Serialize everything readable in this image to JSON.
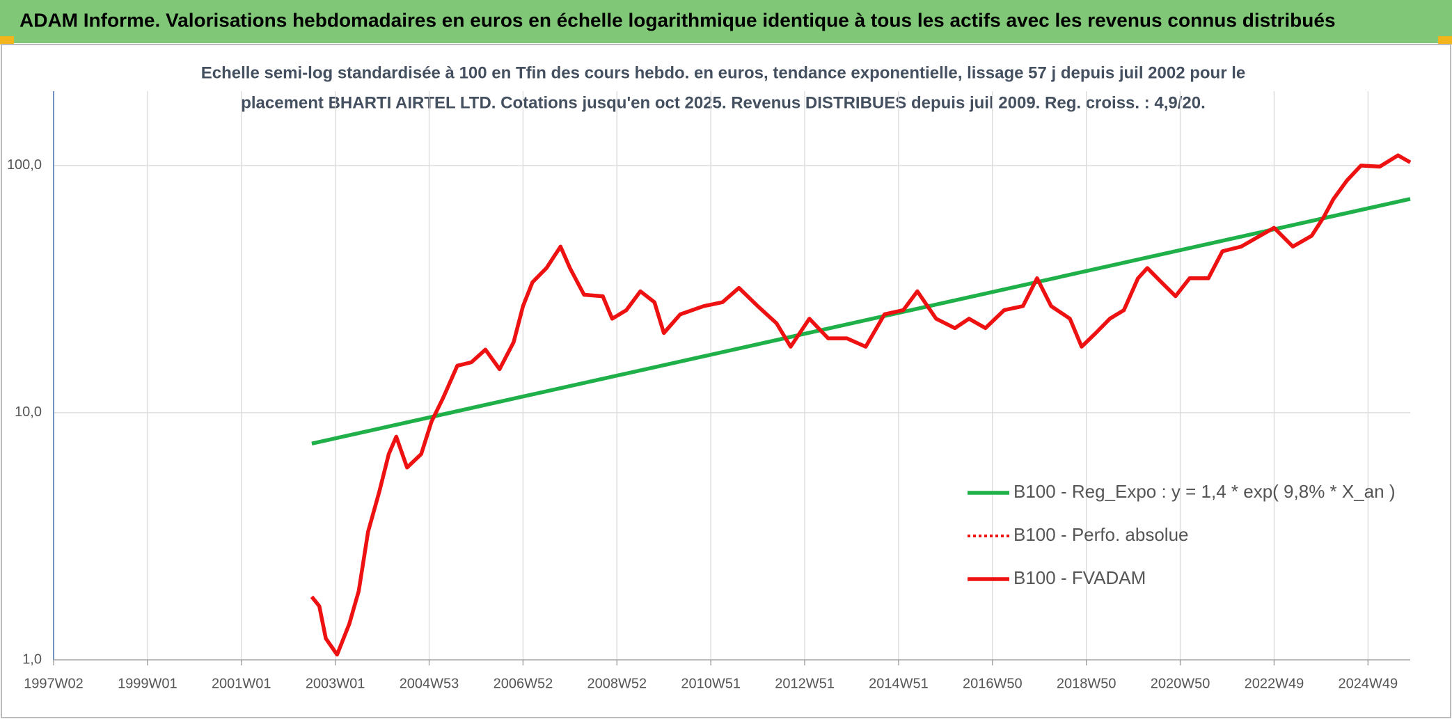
{
  "chart_data": {
    "type": "line",
    "title": "ADAM Informe. Valorisations hebdomadaires en euros en échelle logarithmique identique à tous les actifs avec les revenus connus distribués",
    "subtitle": [
      "Echelle semi-log standardisée à 100 en Tfin des cours hebdo. en euros, tendance exponentielle, lissage 57 j depuis juil 2002 pour le",
      "placement BHARTI AIRTEL LTD. Cotations jusqu'en oct 2025. Revenus DISTRIBUES depuis juil 2009. Reg. croiss. : 4,9/20."
    ],
    "log_scale": true,
    "grid": true,
    "legend": "lower right",
    "xlim": [
      1997.0,
      2025.9
    ],
    "xticks": [
      {
        "value": 1997.0,
        "label": "1997W02"
      },
      {
        "value": 1999.0,
        "label": "1999W01"
      },
      {
        "value": 2001.0,
        "label": "2001W01"
      },
      {
        "value": 2003.0,
        "label": "2003W01"
      },
      {
        "value": 2005.0,
        "label": "2004W53"
      },
      {
        "value": 2007.0,
        "label": "2006W52"
      },
      {
        "value": 2009.0,
        "label": "2008W52"
      },
      {
        "value": 2011.0,
        "label": "2010W51"
      },
      {
        "value": 2013.0,
        "label": "2012W51"
      },
      {
        "value": 2015.0,
        "label": "2014W51"
      },
      {
        "value": 2017.0,
        "label": "2016W50"
      },
      {
        "value": 2019.0,
        "label": "2018W50"
      },
      {
        "value": 2021.0,
        "label": "2020W50"
      },
      {
        "value": 2023.0,
        "label": "2022W49"
      },
      {
        "value": 2025.0,
        "label": "2024W49"
      }
    ],
    "ylim": [
      1,
      200
    ],
    "yticks": [
      {
        "value": 1,
        "label": "1,0"
      },
      {
        "value": 10,
        "label": "10,0"
      },
      {
        "value": 100,
        "label": "100,0"
      }
    ],
    "series": [
      {
        "name": "B100 - Reg_Expo : y = 1,4 * exp( 9,8% *  X_an )",
        "color": "#1fb04a",
        "style": "solid",
        "x": [
          2002.5,
          2025.9
        ],
        "values": [
          7.5,
          73.3
        ]
      },
      {
        "name": "B100 - Perfo. absolue",
        "color": "#ee1111",
        "style": "dotted",
        "x": [],
        "values": []
      },
      {
        "name": "B100 - FVADAM",
        "color": "#ee1111",
        "style": "solid",
        "x": [
          2002.5,
          2002.66,
          2002.8,
          2003.04,
          2003.3,
          2003.5,
          2003.7,
          2003.94,
          2004.14,
          2004.3,
          2004.53,
          2004.83,
          2005.05,
          2005.3,
          2005.6,
          2005.9,
          2006.2,
          2006.5,
          2006.8,
          2007.0,
          2007.2,
          2007.5,
          2007.8,
          2008.0,
          2008.3,
          2008.7,
          2008.9,
          2009.2,
          2009.5,
          2009.8,
          2010.0,
          2010.35,
          2010.85,
          2011.25,
          2011.6,
          2012.0,
          2012.4,
          2012.7,
          2013.1,
          2013.5,
          2013.9,
          2014.3,
          2014.7,
          2015.1,
          2015.4,
          2015.8,
          2016.2,
          2016.5,
          2016.85,
          2017.25,
          2017.65,
          2017.95,
          2018.25,
          2018.65,
          2018.9,
          2019.2,
          2019.5,
          2019.8,
          2020.1,
          2020.3,
          2020.6,
          2020.9,
          2021.2,
          2021.6,
          2021.9,
          2022.3,
          2022.7,
          2023.0,
          2023.4,
          2023.8,
          2024.06,
          2024.26,
          2024.55,
          2024.85,
          2025.25,
          2025.64,
          2025.9
        ],
        "values": [
          1.8,
          1.65,
          1.22,
          1.05,
          1.4,
          1.9,
          3.3,
          4.8,
          6.8,
          8.0,
          6.0,
          6.8,
          9.2,
          11.5,
          15.5,
          16,
          18,
          15,
          19.3,
          27,
          33.7,
          38.5,
          47,
          38.5,
          30,
          29.6,
          24,
          26,
          31,
          28,
          21,
          25,
          27,
          28,
          32,
          27,
          23,
          18.5,
          24,
          20,
          20,
          18.5,
          25,
          26,
          31,
          24,
          22,
          24,
          22,
          26,
          27,
          35,
          27,
          24,
          18.5,
          21,
          24,
          26,
          35,
          38.5,
          33.7,
          29.6,
          35,
          35,
          45,
          47,
          52,
          56,
          47,
          52,
          62,
          73,
          87,
          100,
          99,
          110,
          103
        ]
      }
    ]
  }
}
